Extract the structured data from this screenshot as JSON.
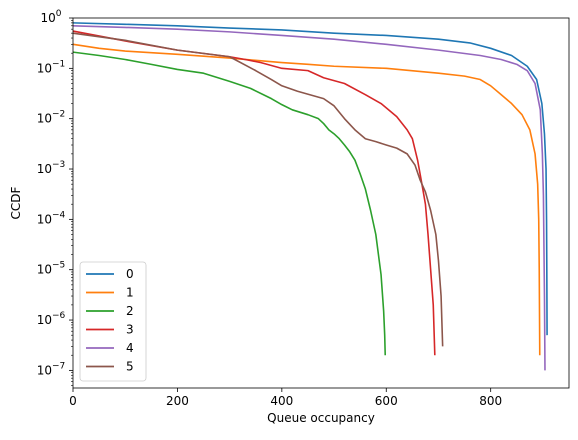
{
  "chart_data": {
    "type": "line",
    "xlabel": "Queue occupancy",
    "ylabel": "CCDF",
    "xlim": [
      0,
      950
    ],
    "ylim_log10": [
      -7.35,
      0
    ],
    "y_scale": "log",
    "x_ticks": [
      0,
      200,
      400,
      600,
      800
    ],
    "x_tick_labels": [
      "0",
      "200",
      "400",
      "600",
      "800"
    ],
    "y_ticks_log10": [
      0,
      -1,
      -2,
      -3,
      -4,
      -5,
      -6,
      -7
    ],
    "y_tick_labels": [
      "10^0",
      "10^-1",
      "10^-2",
      "10^-3",
      "10^-4",
      "10^-5",
      "10^-6",
      "10^-7"
    ],
    "legend_position": "lower-left",
    "grid": false,
    "series": [
      {
        "name": "0",
        "color": "#1f77b4",
        "points": [
          [
            0,
            0.8
          ],
          [
            100,
            0.75
          ],
          [
            200,
            0.7
          ],
          [
            300,
            0.63
          ],
          [
            400,
            0.58
          ],
          [
            500,
            0.5
          ],
          [
            600,
            0.45
          ],
          [
            700,
            0.38
          ],
          [
            760,
            0.32
          ],
          [
            800,
            0.25
          ],
          [
            840,
            0.18
          ],
          [
            870,
            0.11
          ],
          [
            888,
            0.06
          ],
          [
            898,
            0.02
          ],
          [
            903,
            0.005
          ],
          [
            906,
            0.001
          ],
          [
            907,
            0.0001
          ],
          [
            907.5,
            1e-05
          ],
          [
            908,
            5e-07
          ]
        ]
      },
      {
        "name": "1",
        "color": "#ff7f0e",
        "points": [
          [
            0,
            0.3
          ],
          [
            50,
            0.25
          ],
          [
            100,
            0.22
          ],
          [
            200,
            0.19
          ],
          [
            300,
            0.16
          ],
          [
            400,
            0.13
          ],
          [
            450,
            0.12
          ],
          [
            500,
            0.11
          ],
          [
            600,
            0.1
          ],
          [
            700,
            0.08
          ],
          [
            750,
            0.07
          ],
          [
            780,
            0.06
          ],
          [
            800,
            0.045
          ],
          [
            820,
            0.03
          ],
          [
            840,
            0.02
          ],
          [
            860,
            0.012
          ],
          [
            875,
            0.006
          ],
          [
            885,
            0.002
          ],
          [
            890,
            0.0005
          ],
          [
            892,
            0.0001
          ],
          [
            893,
            1e-05
          ],
          [
            894,
            2e-07
          ]
        ]
      },
      {
        "name": "2",
        "color": "#2ca02c",
        "points": [
          [
            0,
            0.21
          ],
          [
            50,
            0.18
          ],
          [
            100,
            0.15
          ],
          [
            150,
            0.12
          ],
          [
            200,
            0.095
          ],
          [
            250,
            0.08
          ],
          [
            300,
            0.055
          ],
          [
            340,
            0.04
          ],
          [
            380,
            0.025
          ],
          [
            400,
            0.019
          ],
          [
            420,
            0.015
          ],
          [
            450,
            0.012
          ],
          [
            470,
            0.01
          ],
          [
            480,
            0.008
          ],
          [
            490,
            0.006
          ],
          [
            500,
            0.005
          ],
          [
            510,
            0.004
          ],
          [
            520,
            0.003
          ],
          [
            530,
            0.0022
          ],
          [
            540,
            0.0015
          ],
          [
            550,
            0.0008
          ],
          [
            560,
            0.0004
          ],
          [
            570,
            0.00015
          ],
          [
            580,
            5e-05
          ],
          [
            585,
            2e-05
          ],
          [
            590,
            8e-06
          ],
          [
            595,
            1.5e-06
          ],
          [
            597,
            5e-07
          ],
          [
            598,
            2e-07
          ]
        ]
      },
      {
        "name": "3",
        "color": "#d62728",
        "points": [
          [
            0,
            0.55
          ],
          [
            100,
            0.35
          ],
          [
            200,
            0.23
          ],
          [
            300,
            0.17
          ],
          [
            330,
            0.15
          ],
          [
            360,
            0.13
          ],
          [
            400,
            0.1
          ],
          [
            450,
            0.09
          ],
          [
            480,
            0.065
          ],
          [
            520,
            0.05
          ],
          [
            560,
            0.03
          ],
          [
            590,
            0.02
          ],
          [
            620,
            0.011
          ],
          [
            640,
            0.006
          ],
          [
            650,
            0.004
          ],
          [
            660,
            0.0015
          ],
          [
            670,
            0.0004
          ],
          [
            675,
            0.0002
          ],
          [
            680,
            5e-05
          ],
          [
            685,
            1e-05
          ],
          [
            690,
            2e-06
          ],
          [
            693,
            2e-07
          ]
        ]
      },
      {
        "name": "4",
        "color": "#9467bd",
        "points": [
          [
            0,
            0.7
          ],
          [
            100,
            0.65
          ],
          [
            200,
            0.6
          ],
          [
            300,
            0.53
          ],
          [
            400,
            0.45
          ],
          [
            500,
            0.38
          ],
          [
            600,
            0.3
          ],
          [
            700,
            0.23
          ],
          [
            780,
            0.18
          ],
          [
            820,
            0.15
          ],
          [
            850,
            0.12
          ],
          [
            870,
            0.09
          ],
          [
            885,
            0.05
          ],
          [
            895,
            0.015
          ],
          [
            899,
            0.002
          ],
          [
            901,
            0.0003
          ],
          [
            902,
            3e-05
          ],
          [
            903,
            3e-06
          ],
          [
            904,
            1e-07
          ]
        ]
      },
      {
        "name": "5",
        "color": "#8c564b",
        "points": [
          [
            0,
            0.5
          ],
          [
            100,
            0.36
          ],
          [
            200,
            0.23
          ],
          [
            300,
            0.17
          ],
          [
            350,
            0.09
          ],
          [
            380,
            0.06
          ],
          [
            400,
            0.045
          ],
          [
            430,
            0.035
          ],
          [
            480,
            0.025
          ],
          [
            500,
            0.018
          ],
          [
            520,
            0.01
          ],
          [
            540,
            0.006
          ],
          [
            560,
            0.004
          ],
          [
            580,
            0.0035
          ],
          [
            600,
            0.003
          ],
          [
            620,
            0.0026
          ],
          [
            640,
            0.002
          ],
          [
            655,
            0.0012
          ],
          [
            665,
            0.0006
          ],
          [
            675,
            0.00035
          ],
          [
            685,
            0.00015
          ],
          [
            695,
            5e-05
          ],
          [
            700,
            1.5e-05
          ],
          [
            705,
            3e-06
          ],
          [
            708,
            3e-07
          ]
        ]
      }
    ]
  }
}
